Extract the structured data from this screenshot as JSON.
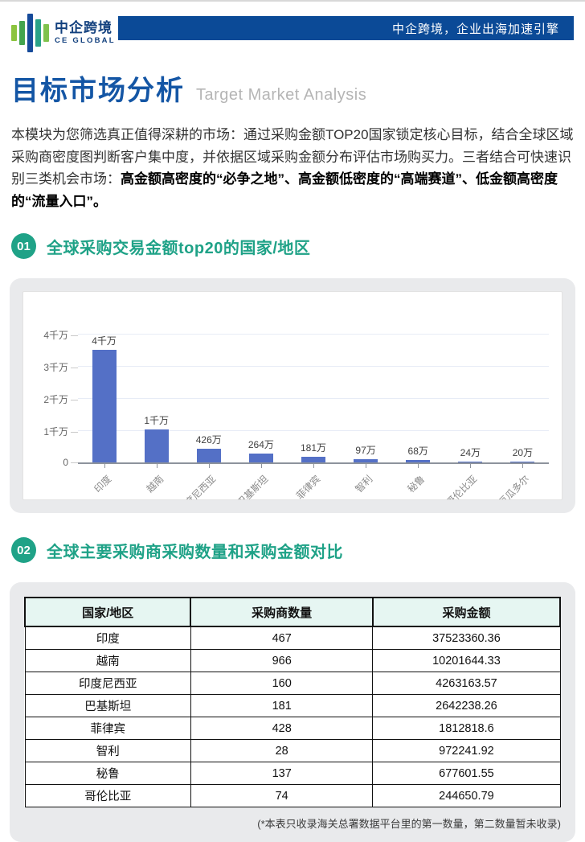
{
  "header": {
    "logo_cn": "中企跨境",
    "logo_en": "CE GLOBAL",
    "banner_text": "中企跨境，企业出海加速引擎"
  },
  "page": {
    "title_cn": "目标市场分析",
    "title_en": "Target Market Analysis",
    "intro_normal": "本模块为您筛选真正值得深耕的市场：通过采购金额TOP20国家锁定核心目标，结合全球区域采购商密度图判断客户集中度，并依据区域采购金额分布评估市场购买力。三者结合可快速识别三类机会市场：",
    "intro_bold": "高金额高密度的“必争之地”、高金额低密度的“高端赛道”、低金额高密度的“流量入口”。"
  },
  "sections": [
    {
      "num": "01",
      "title": "全球采购交易金额top20的国家/地区"
    },
    {
      "num": "02",
      "title": "全球主要采购商采购数量和采购金额对比"
    }
  ],
  "chart_data": {
    "type": "bar",
    "categories": [
      "印度",
      "越南",
      "印度尼西亚",
      "巴基斯坦",
      "菲律宾",
      "智利",
      "秘鲁",
      "哥伦比亚",
      "厄瓜多尔"
    ],
    "values": [
      37523360,
      10201644,
      4263164,
      2642238,
      1812819,
      972242,
      677602,
      244651,
      200000
    ],
    "bar_labels": [
      "4千万",
      "1千万",
      "426万",
      "264万",
      "181万",
      "97万",
      "68万",
      "24万",
      "20万"
    ],
    "y_ticks": [
      "4千万",
      "3千万",
      "2千万",
      "1千万",
      "0"
    ],
    "ylim": [
      0,
      40000000
    ],
    "xlabel": "",
    "ylabel": "",
    "title": "",
    "grid": true,
    "legend": false,
    "bar_color": "#5470c6"
  },
  "table": {
    "headers": [
      "国家/地区",
      "采购商数量",
      "采购金额"
    ],
    "rows": [
      [
        "印度",
        "467",
        "37523360.36"
      ],
      [
        "越南",
        "966",
        "10201644.33"
      ],
      [
        "印度尼西亚",
        "160",
        "4263163.57"
      ],
      [
        "巴基斯坦",
        "181",
        "2642238.26"
      ],
      [
        "菲律宾",
        "428",
        "1812818.6"
      ],
      [
        "智利",
        "28",
        "972241.92"
      ],
      [
        "秘鲁",
        "137",
        "677601.55"
      ],
      [
        "哥伦比亚",
        "74",
        "244650.79"
      ]
    ],
    "footnote": "(*本表只收录海关总署数据平台里的第一数量，第二数量暂未收录)"
  },
  "colors": {
    "brand_navy": "#0b4a97",
    "title_blue": "#1456a5",
    "section_green": "#1fa287",
    "bar_blue": "#5470c6",
    "table_header_bg": "#e6f6f2",
    "card_gray": "#e9eaec"
  }
}
